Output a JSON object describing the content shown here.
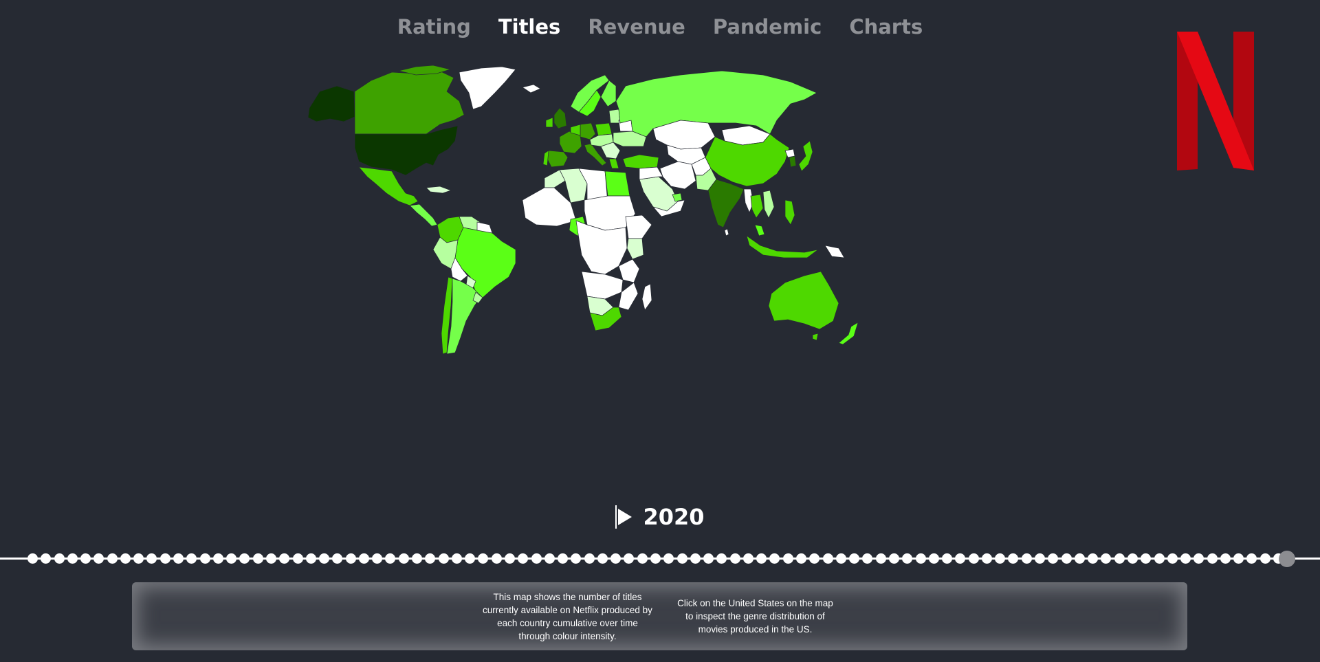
{
  "nav": {
    "items": [
      {
        "label": "Rating",
        "active": false
      },
      {
        "label": "Titles",
        "active": true
      },
      {
        "label": "Revenue",
        "active": false
      },
      {
        "label": "Pandemic",
        "active": false
      },
      {
        "label": "Charts",
        "active": false
      }
    ]
  },
  "logo": {
    "icon": "netflix-n-logo",
    "color": "#e50914"
  },
  "timeline": {
    "year": "2020",
    "play_icon": "play-icon",
    "progress": 1.0
  },
  "info": {
    "left_text": "This map shows the number of titles currently available on Netflix produced by each country cumulative over time through colour intensity.",
    "right_text": "Click on the United States on the map to inspect the genre distribution of movies produced in the US."
  },
  "map": {
    "colors": {
      "ocean": "#262a33",
      "level_0": "#ffffff",
      "level_1": "#d9ffd0",
      "level_2": "#b6ff9f",
      "level_3": "#75ff4a",
      "level_4": "#5bff16",
      "level_5": "#4ed800",
      "level_6": "#3ea200",
      "level_7": "#2a7a00",
      "level_8": "#0b3700"
    }
  }
}
